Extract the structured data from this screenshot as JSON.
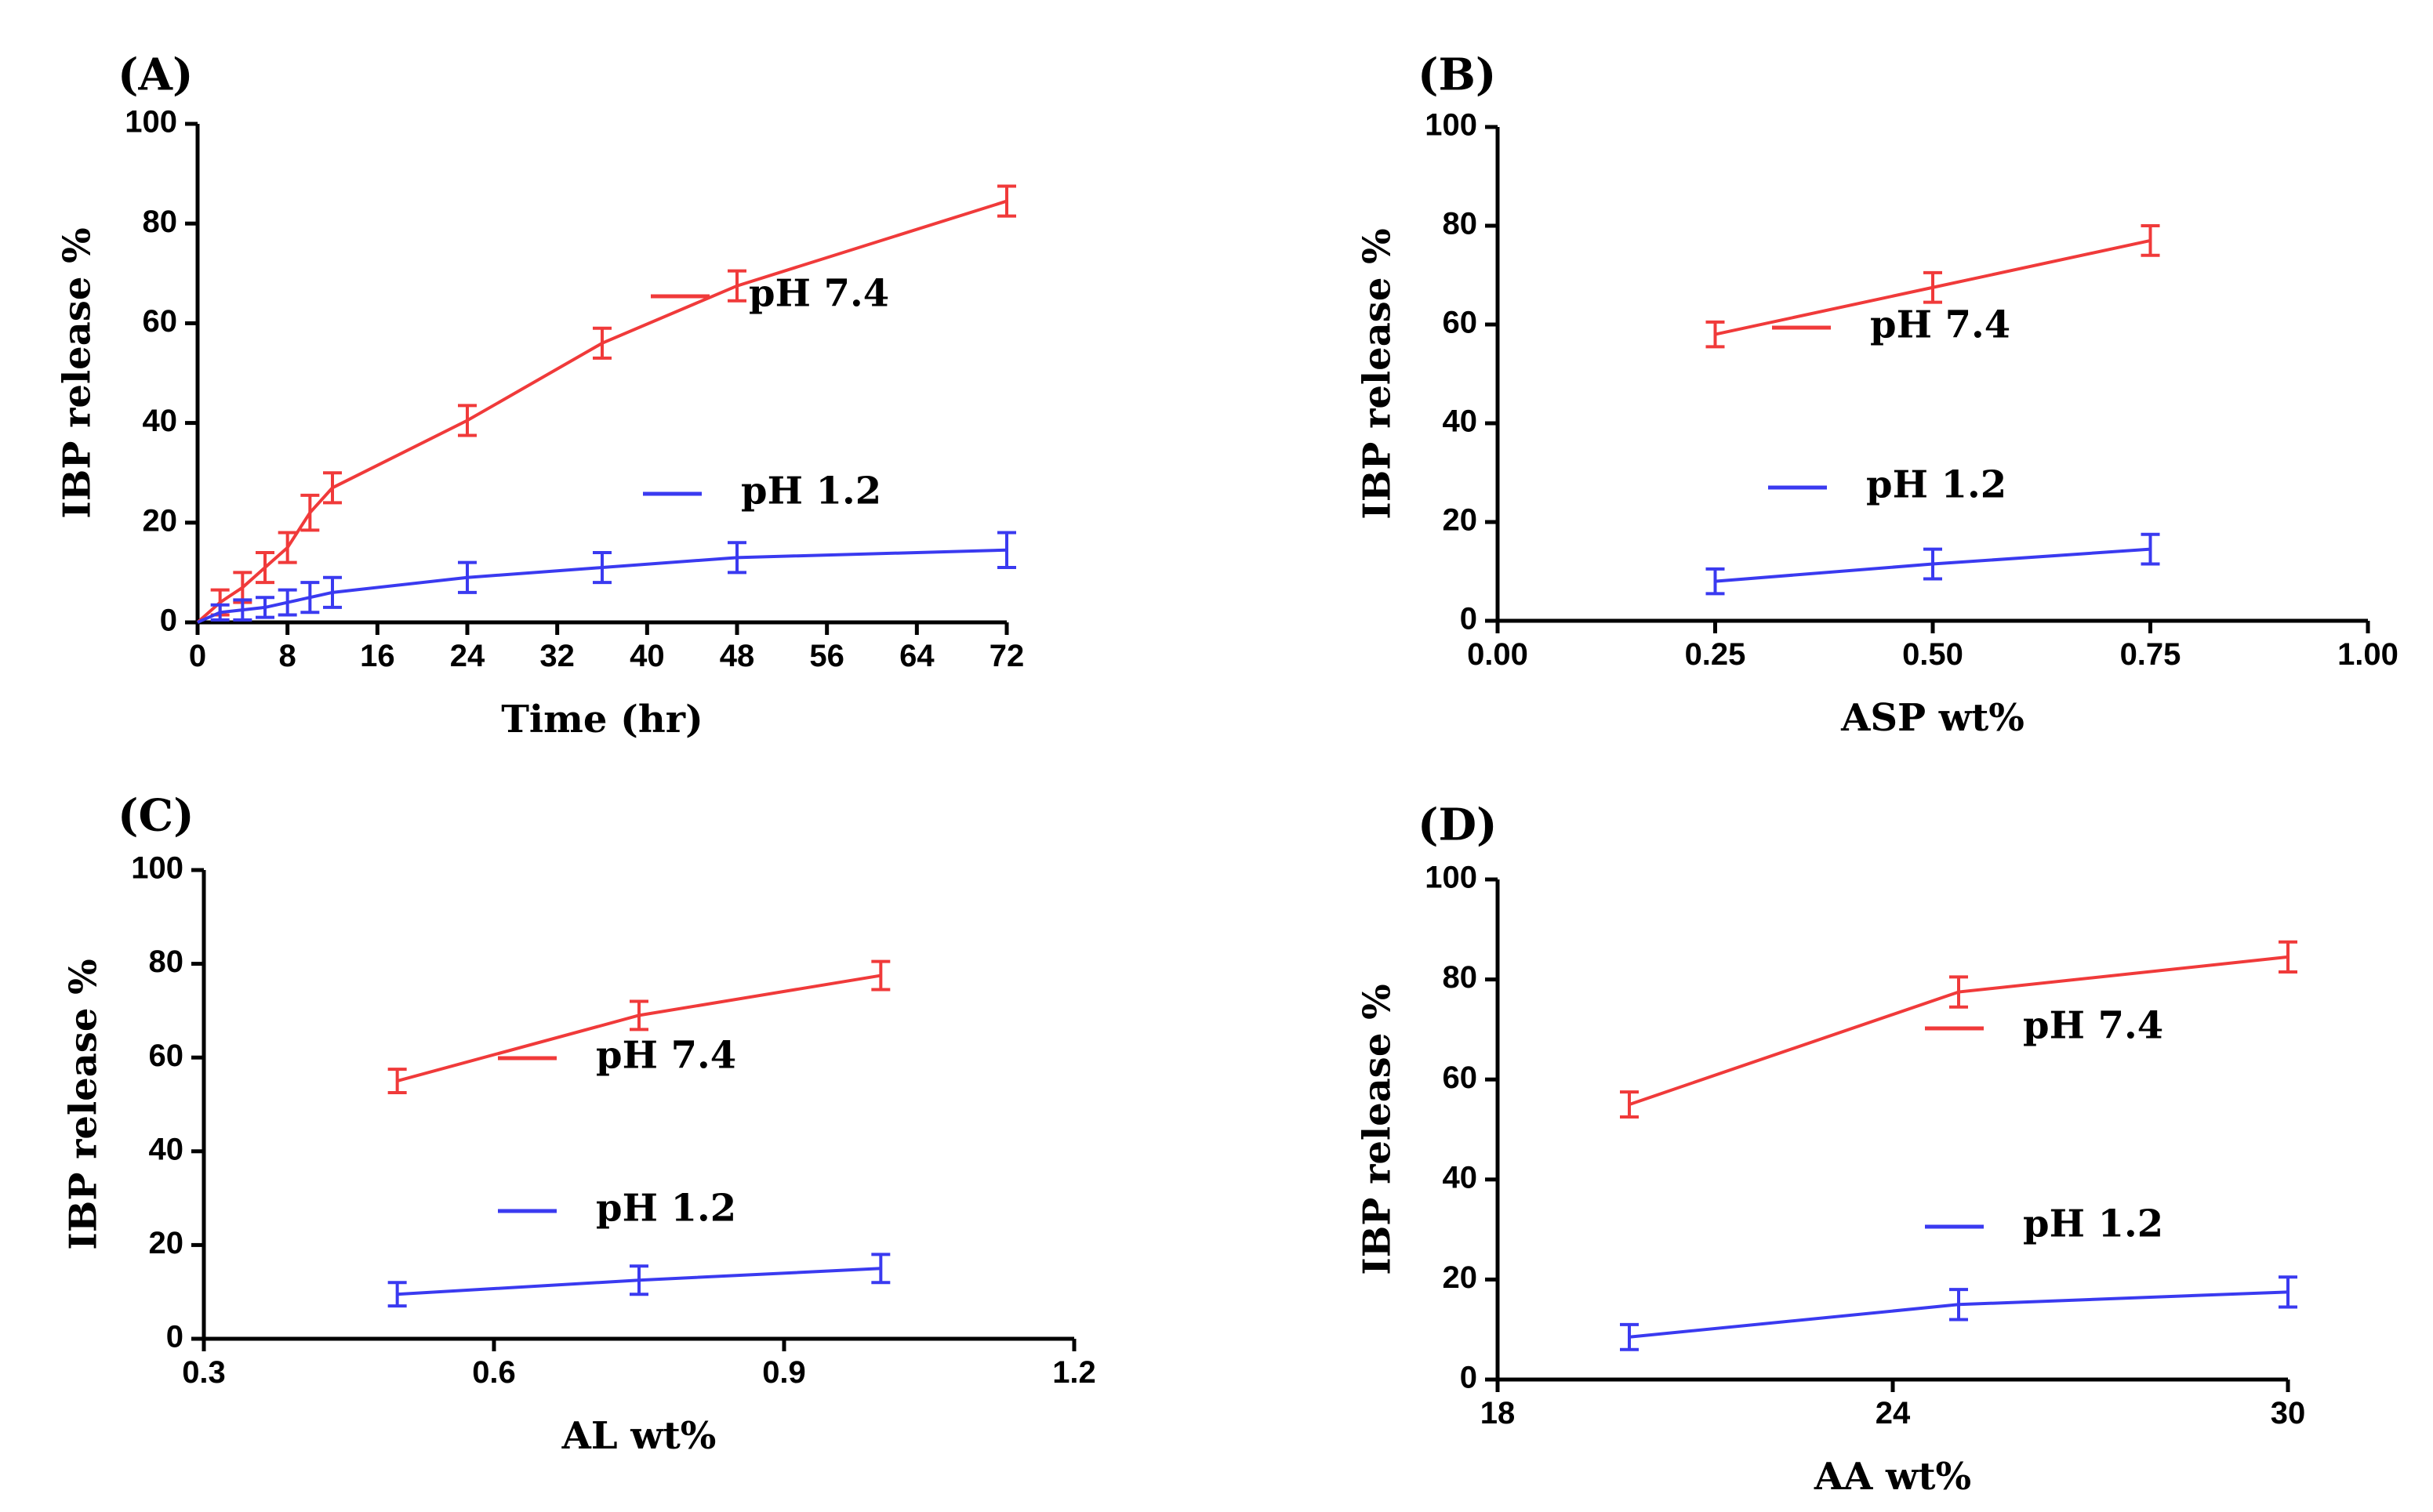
{
  "colors": {
    "ph74": "#f03a3a",
    "ph12": "#3a3af0",
    "axis": "#000000"
  },
  "chart_data": [
    {
      "type": "line",
      "panel": "(A)",
      "xlabel": "Time (hr)",
      "ylabel": "IBP release %",
      "xlim": [
        0,
        72
      ],
      "ylim": [
        0,
        100
      ],
      "xticks": [
        0,
        8,
        16,
        24,
        32,
        40,
        48,
        56,
        64,
        72
      ],
      "xtick_labels": [
        "0",
        "8",
        "16",
        "24",
        "32",
        "40",
        "48",
        "56",
        "64",
        "72"
      ],
      "yticks": [
        0,
        20,
        40,
        60,
        80,
        100
      ],
      "ytick_labels": [
        "0",
        "20",
        "40",
        "60",
        "80",
        "100"
      ],
      "series": [
        {
          "name": "pH 7.4",
          "color": "#f03a3a",
          "x": [
            0,
            2,
            4,
            6,
            8,
            10,
            12,
            24,
            36,
            48,
            72
          ],
          "y": [
            0,
            4,
            7,
            11,
            15,
            22,
            27,
            40.5,
            56,
            67.5,
            84.5
          ],
          "err": [
            0.5,
            2.5,
            3,
            3,
            3,
            3.5,
            3,
            3,
            3,
            3,
            3
          ]
        },
        {
          "name": "pH 1.2",
          "color": "#3a3af0",
          "x": [
            0,
            2,
            4,
            6,
            8,
            10,
            12,
            24,
            36,
            48,
            72
          ],
          "y": [
            0,
            2,
            2.5,
            3,
            4,
            5,
            6,
            9,
            11,
            13,
            14.5
          ],
          "err": [
            0.5,
            1.5,
            2,
            2,
            2.5,
            3,
            3,
            3,
            3,
            3,
            3.5
          ]
        }
      ],
      "legend": [
        {
          "label": "pH 7.4",
          "color": "#f03a3a"
        },
        {
          "label": "pH 1.2",
          "color": "#3a3af0"
        }
      ]
    },
    {
      "type": "line",
      "panel": "(B)",
      "xlabel": "ASP wt%",
      "ylabel": "IBP release %",
      "xlim": [
        0,
        1
      ],
      "ylim": [
        0,
        100
      ],
      "xticks": [
        0,
        0.25,
        0.5,
        0.75,
        1
      ],
      "xtick_labels": [
        "0.00",
        "0.25",
        "0.50",
        "0.75",
        "1.00"
      ],
      "yticks": [
        0,
        20,
        40,
        60,
        80,
        100
      ],
      "ytick_labels": [
        "0",
        "20",
        "40",
        "60",
        "80",
        "100"
      ],
      "series": [
        {
          "name": "pH 7.4",
          "color": "#f03a3a",
          "x": [
            0.25,
            0.5,
            0.75
          ],
          "y": [
            58,
            67.5,
            77
          ],
          "err": [
            2.5,
            3,
            3
          ]
        },
        {
          "name": "pH 1.2",
          "color": "#3a3af0",
          "x": [
            0.25,
            0.5,
            0.75
          ],
          "y": [
            8,
            11.5,
            14.5
          ],
          "err": [
            2.5,
            3,
            3
          ]
        }
      ],
      "legend": [
        {
          "label": "pH 7.4",
          "color": "#f03a3a"
        },
        {
          "label": "pH 1.2",
          "color": "#3a3af0"
        }
      ]
    },
    {
      "type": "line",
      "panel": "(C)",
      "xlabel": "AL wt%",
      "ylabel": "IBP release %",
      "xlim": [
        0.3,
        1.2
      ],
      "ylim": [
        0,
        100
      ],
      "xticks": [
        0.3,
        0.6,
        0.9,
        1.2
      ],
      "xtick_labels": [
        "0.3",
        "0.6",
        "0.9",
        "1.2"
      ],
      "yticks": [
        0,
        20,
        40,
        60,
        80,
        100
      ],
      "ytick_labels": [
        "0",
        "20",
        "40",
        "60",
        "80",
        "100"
      ],
      "series": [
        {
          "name": "pH 7.4",
          "color": "#f03a3a",
          "x": [
            0.5,
            0.75,
            1.0
          ],
          "y": [
            55,
            69,
            77.5
          ],
          "err": [
            2.5,
            3,
            3
          ]
        },
        {
          "name": "pH 1.2",
          "color": "#3a3af0",
          "x": [
            0.5,
            0.75,
            1.0
          ],
          "y": [
            9.5,
            12.5,
            15
          ],
          "err": [
            2.5,
            3,
            3
          ]
        }
      ],
      "legend": [
        {
          "label": "pH 7.4",
          "color": "#f03a3a"
        },
        {
          "label": "pH 1.2",
          "color": "#3a3af0"
        }
      ]
    },
    {
      "type": "line",
      "panel": "(D)",
      "xlabel": "AA wt%",
      "ylabel": "IBP release %",
      "xlim": [
        18,
        30
      ],
      "ylim": [
        0,
        100
      ],
      "xticks": [
        18,
        24,
        30
      ],
      "xtick_labels": [
        "18",
        "24",
        "30"
      ],
      "yticks": [
        0,
        20,
        40,
        60,
        80,
        100
      ],
      "ytick_labels": [
        "0",
        "20",
        "40",
        "60",
        "80",
        "100"
      ],
      "series": [
        {
          "name": "pH 7.4",
          "color": "#f03a3a",
          "x": [
            20,
            25,
            30
          ],
          "y": [
            55,
            77.5,
            84.5
          ],
          "err": [
            2.5,
            3,
            3
          ]
        },
        {
          "name": "pH 1.2",
          "color": "#3a3af0",
          "x": [
            20,
            25,
            30
          ],
          "y": [
            8.5,
            15,
            17.5
          ],
          "err": [
            2.5,
            3,
            3
          ]
        }
      ],
      "legend": [
        {
          "label": "pH 7.4",
          "color": "#f03a3a"
        },
        {
          "label": "pH 1.2",
          "color": "#3a3af0"
        }
      ]
    }
  ]
}
